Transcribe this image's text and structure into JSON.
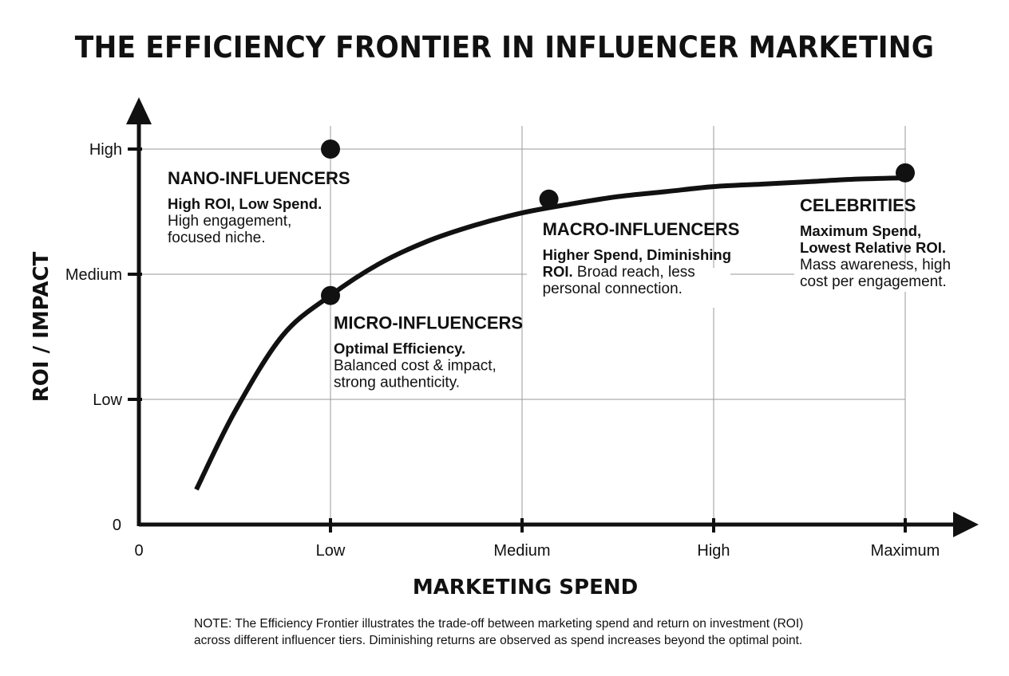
{
  "chart_data": {
    "type": "line",
    "title": "THE EFFICIENCY FRONTIER IN INFLUENCER MARKETING",
    "xlabel": "MARKETING SPEND",
    "ylabel": "ROI / IMPACT",
    "x_ticks": [
      "0",
      "Low",
      "Medium",
      "High",
      "Maximum"
    ],
    "y_ticks": [
      "0",
      "Low",
      "Medium",
      "High"
    ],
    "xlim": [
      0,
      4
    ],
    "ylim": [
      0,
      3
    ],
    "grid": true,
    "curve": {
      "x": [
        0.3,
        0.5,
        0.75,
        1.0,
        1.25,
        1.5,
        1.75,
        2.0,
        2.25,
        2.5,
        2.75,
        3.0,
        3.25,
        3.5,
        3.75,
        4.0
      ],
      "y": [
        0.28,
        0.9,
        1.51,
        1.83,
        2.08,
        2.26,
        2.39,
        2.49,
        2.56,
        2.62,
        2.66,
        2.7,
        2.72,
        2.74,
        2.76,
        2.77
      ]
    },
    "points": [
      {
        "name": "NANO-INFLUENCERS",
        "x": 1.0,
        "y": 3.0,
        "bold": "High ROI, Low Spend.",
        "lines": [
          "High engagement,",
          "focused niche."
        ]
      },
      {
        "name": "MICRO-INFLUENCERS",
        "x": 1.0,
        "y": 1.83,
        "bold": "Optimal Efficiency.",
        "lines": [
          "Balanced cost & impact,",
          "strong authenticity."
        ]
      },
      {
        "name": "MACRO-INFLUENCERS",
        "x": 2.14,
        "y": 2.6,
        "bold": "Higher Spend, Diminishing",
        "bold2": "ROI.",
        "after_bold2": " Broad reach, less",
        "lines": [
          "personal connection."
        ]
      },
      {
        "name": "CELEBRITIES",
        "x": 4.0,
        "y": 2.81,
        "bold": "Maximum Spend,",
        "bold2": "Lowest Relative ROI.",
        "lines": [
          "Mass awareness, high",
          "cost per engagement."
        ]
      }
    ]
  },
  "note": {
    "line1": "NOTE: The Efficiency Frontier illustrates the trade-off between marketing spend and return on investment (ROI)",
    "line2": "across different influencer tiers. Diminishing returns are observed as spend increases beyond the optimal point."
  }
}
